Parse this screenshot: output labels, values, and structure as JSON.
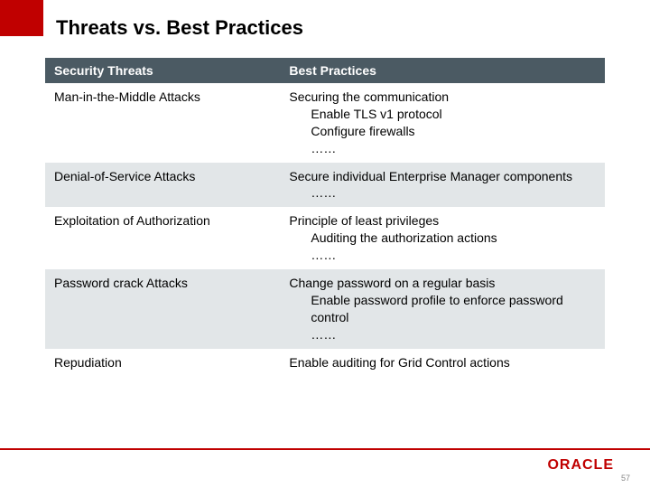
{
  "colors": {
    "accent_red": "#c00000",
    "header_bg": "#4b5a63",
    "header_text": "#ffffff",
    "row_shade": "#e2e6e8",
    "row_light": "#ffffff",
    "body_text": "#000000",
    "pagenum_color": "#888888"
  },
  "title": "Threats vs. Best Practices",
  "table": {
    "columns": [
      "Security Threats",
      "Best Practices"
    ],
    "col_widths_pct": [
      42,
      58
    ],
    "header_fontsize": 14,
    "cell_fontsize": 14,
    "rows": [
      {
        "threat": "Man-in-the-Middle Attacks",
        "practice_main": "Securing the communication",
        "practice_sub": [
          "Enable TLS v1 protocol",
          "Configure firewalls",
          "……"
        ],
        "shaded": false
      },
      {
        "threat": "Denial-of-Service Attacks",
        "practice_main": "Secure individual Enterprise Manager components",
        "practice_sub": [
          "……"
        ],
        "shaded": true
      },
      {
        "threat": "Exploitation of Authorization",
        "practice_main": "Principle of least privileges",
        "practice_sub": [
          "Auditing the authorization actions",
          "……"
        ],
        "shaded": false
      },
      {
        "threat": "Password crack Attacks",
        "practice_main": "Change password on a regular basis",
        "practice_sub": [
          "Enable password profile to enforce password control",
          "……"
        ],
        "shaded": true
      },
      {
        "threat": "Repudiation",
        "practice_main": "Enable auditing for Grid Control actions",
        "practice_sub": [],
        "shaded": false
      }
    ]
  },
  "footer": {
    "logo_text": "ORACLE",
    "page_number": "57"
  }
}
